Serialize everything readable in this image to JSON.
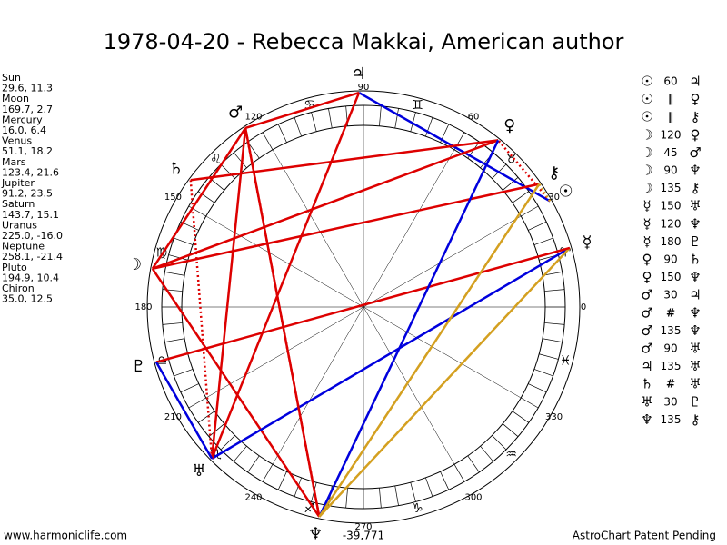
{
  "title": "1978-04-20 - Rebecca Makkai, American author",
  "planets": [
    {
      "name": "Sun",
      "glyph": "☉",
      "lon": 29.6,
      "lat": 11.3,
      "label": "29.6, 11.3"
    },
    {
      "name": "Moon",
      "glyph": "☽",
      "lon": 169.7,
      "lat": 2.7,
      "label": "169.7, 2.7"
    },
    {
      "name": "Mercury",
      "glyph": "☿",
      "lon": 16.0,
      "lat": 6.4,
      "label": "16.0, 6.4"
    },
    {
      "name": "Venus",
      "glyph": "♀",
      "lon": 51.1,
      "lat": 18.2,
      "label": "51.1, 18.2"
    },
    {
      "name": "Mars",
      "glyph": "♂",
      "lon": 123.4,
      "lat": 21.6,
      "label": "123.4, 21.6"
    },
    {
      "name": "Jupiter",
      "glyph": "♃",
      "lon": 91.2,
      "lat": 23.5,
      "label": "91.2, 23.5"
    },
    {
      "name": "Saturn",
      "glyph": "♄",
      "lon": 143.7,
      "lat": 15.1,
      "label": "143.7, 15.1"
    },
    {
      "name": "Uranus",
      "glyph": "♅",
      "lon": 225.0,
      "lat": -16.0,
      "label": "225.0, -16.0"
    },
    {
      "name": "Neptune",
      "glyph": "♆",
      "lon": 258.1,
      "lat": -21.4,
      "label": "258.1, -21.4"
    },
    {
      "name": "Pluto",
      "glyph": "♇",
      "lon": 194.9,
      "lat": 10.4,
      "label": "194.9, 10.4"
    },
    {
      "name": "Chiron",
      "glyph": "⚷",
      "lon": 35.0,
      "lat": 12.5,
      "label": "35.0, 12.5"
    }
  ],
  "aspects": [
    {
      "p1": 0,
      "symbol": 60,
      "p2": 5,
      "color": "#0000dd",
      "dotted": false
    },
    {
      "p1": 0,
      "symbol": "∥",
      "p2": 3,
      "color": "#dd0000",
      "dotted": true
    },
    {
      "p1": 0,
      "symbol": "∥",
      "p2": 10,
      "color": "#d4a020",
      "dotted": true
    },
    {
      "p1": 1,
      "symbol": 120,
      "p2": 3,
      "color": "#dd0000",
      "dotted": false
    },
    {
      "p1": 1,
      "symbol": 45,
      "p2": 4,
      "color": "#dd0000",
      "dotted": false
    },
    {
      "p1": 1,
      "symbol": 90,
      "p2": 8,
      "color": "#dd0000",
      "dotted": false
    },
    {
      "p1": 1,
      "symbol": 135,
      "p2": 10,
      "color": "#dd0000",
      "dotted": false
    },
    {
      "p1": 2,
      "symbol": 150,
      "p2": 7,
      "color": "#0000dd",
      "dotted": false
    },
    {
      "p1": 2,
      "symbol": 120,
      "p2": 8,
      "color": "#d4a020",
      "dotted": false
    },
    {
      "p1": 2,
      "symbol": 180,
      "p2": 9,
      "color": "#dd0000",
      "dotted": false
    },
    {
      "p1": 3,
      "symbol": 90,
      "p2": 6,
      "color": "#dd0000",
      "dotted": false
    },
    {
      "p1": 3,
      "symbol": 150,
      "p2": 8,
      "color": "#0000dd",
      "dotted": false
    },
    {
      "p1": 4,
      "symbol": 30,
      "p2": 5,
      "color": "#dd0000",
      "dotted": false
    },
    {
      "p1": 4,
      "symbol": "#",
      "p2": 8,
      "color": "#dd0000",
      "dotted": true
    },
    {
      "p1": 4,
      "symbol": 135,
      "p2": 8,
      "color": "#dd0000",
      "dotted": false
    },
    {
      "p1": 4,
      "symbol": 90,
      "p2": 7,
      "color": "#dd0000",
      "dotted": false
    },
    {
      "p1": 5,
      "symbol": 135,
      "p2": 7,
      "color": "#dd0000",
      "dotted": false
    },
    {
      "p1": 6,
      "symbol": "#",
      "p2": 7,
      "color": "#dd0000",
      "dotted": true
    },
    {
      "p1": 7,
      "symbol": 30,
      "p2": 9,
      "color": "#0000dd",
      "dotted": false
    },
    {
      "p1": 8,
      "symbol": 135,
      "p2": 10,
      "color": "#d4a020",
      "dotted": false
    }
  ],
  "signs": [
    "♈",
    "♉",
    "♊",
    "♋",
    "♌",
    "♍",
    "♎",
    "♏",
    "♐",
    "♑",
    "♒",
    "♓"
  ],
  "degree_labels": [
    0,
    30,
    60,
    90,
    120,
    150,
    180,
    210,
    240,
    270,
    300,
    330
  ],
  "center_label": "-39,771",
  "footer_left": "www.harmoniclife.com",
  "footer_right": "AstroChart Patent Pending"
}
